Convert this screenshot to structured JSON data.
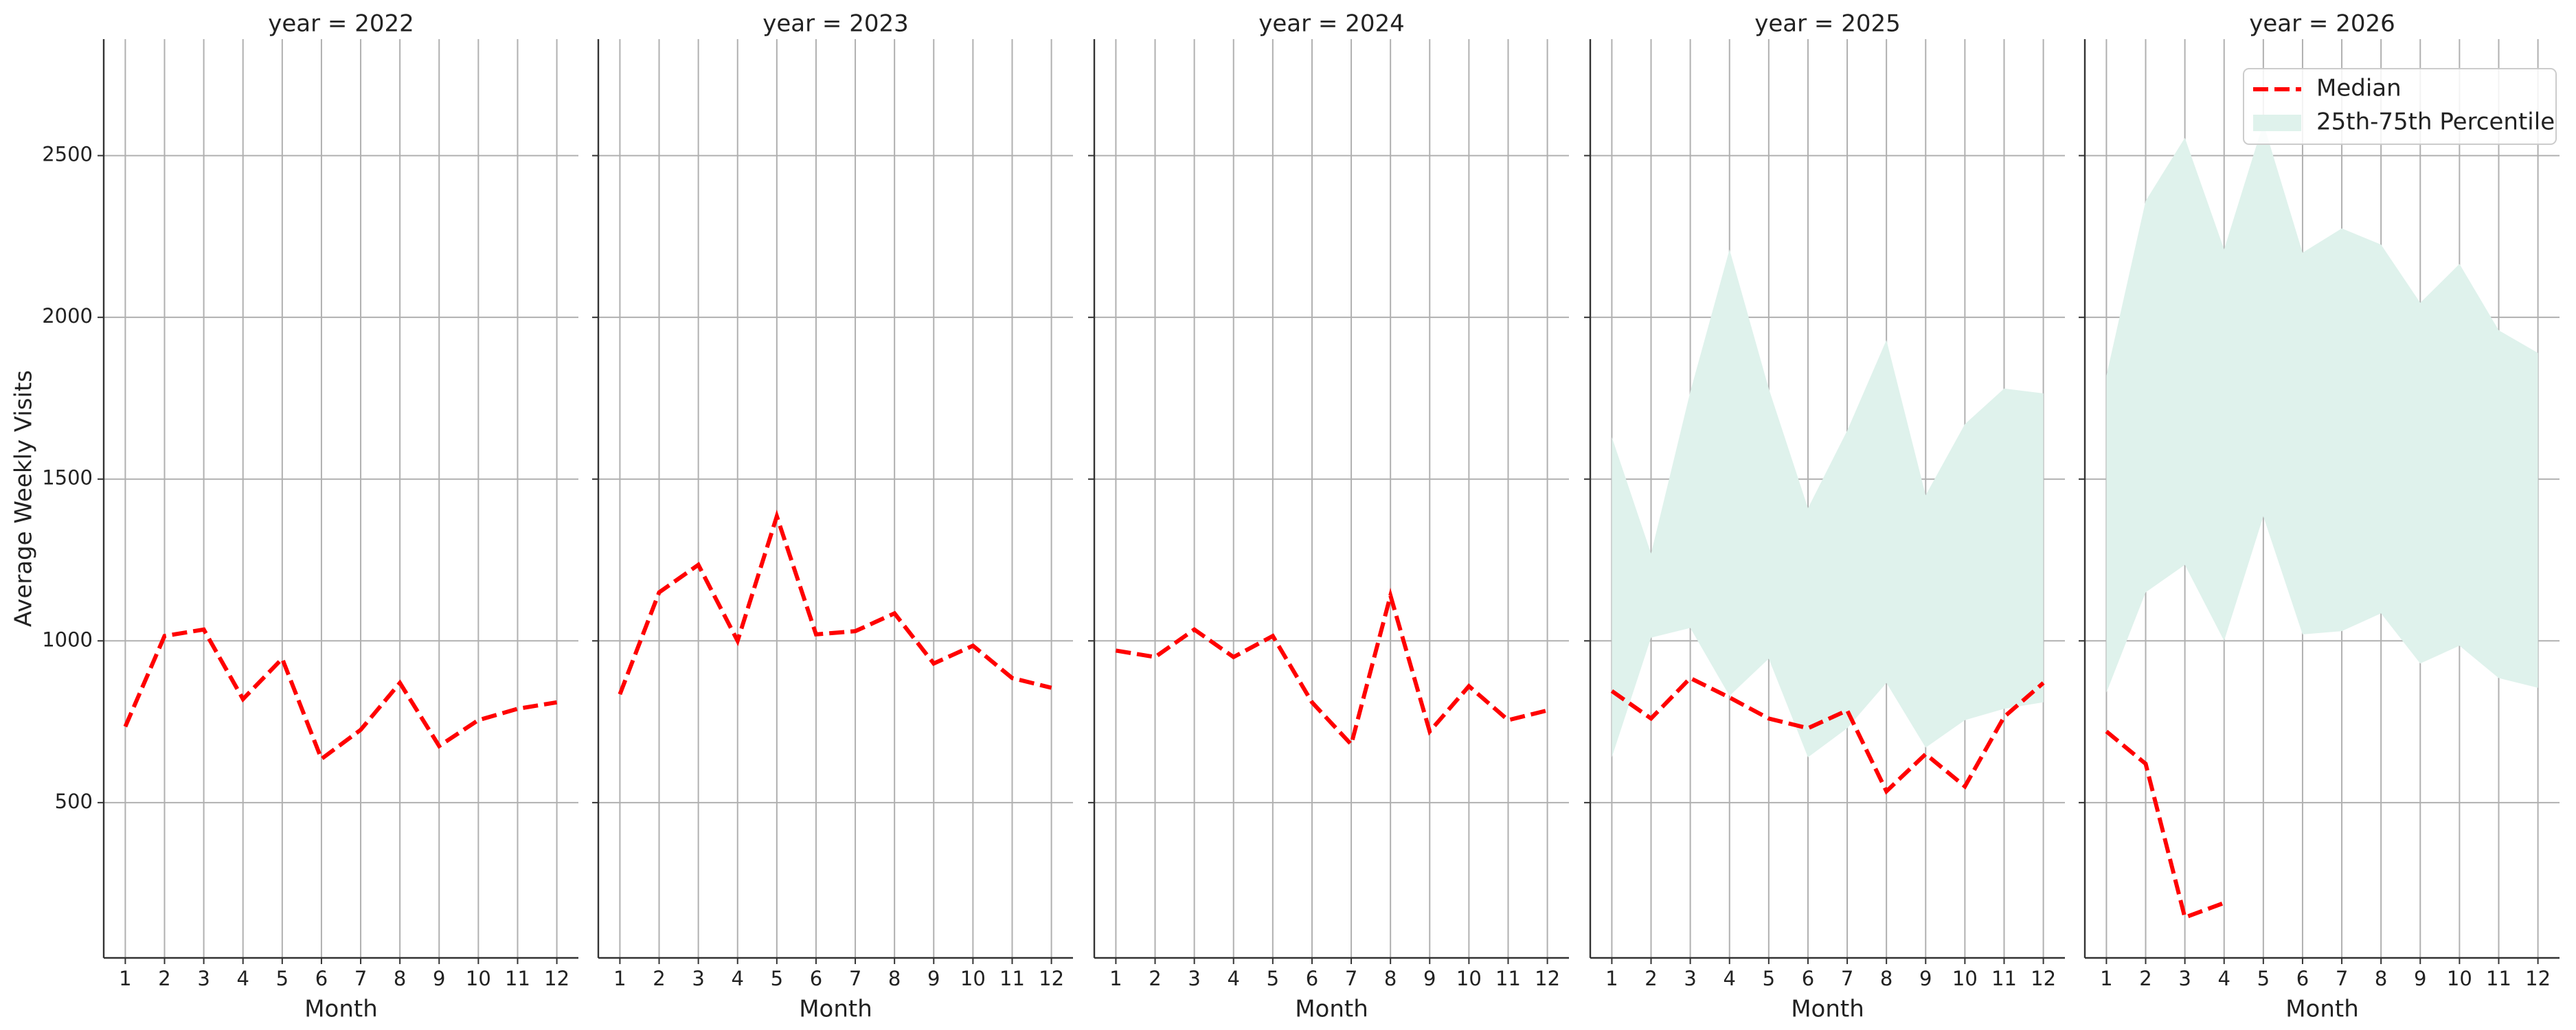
{
  "chart_data": [
    {
      "type": "line",
      "title": "year = 2022",
      "x_label": "Month",
      "y_label": "Average Weekly Visits",
      "x": [
        1,
        2,
        3,
        4,
        5,
        6,
        7,
        8,
        9,
        10,
        11,
        12
      ],
      "xticks": [
        1,
        2,
        3,
        4,
        5,
        6,
        7,
        8,
        9,
        10,
        11,
        12
      ],
      "xlim": [
        0.45,
        12.55
      ],
      "ylim": [
        20,
        2860
      ],
      "yticks": [
        500,
        1000,
        1500,
        2000,
        2500
      ],
      "grid": true,
      "series": [
        {
          "type": "line",
          "color": "#ff0000",
          "dashed": true,
          "values": [
            735,
            1015,
            1035,
            820,
            945,
            635,
            725,
            870,
            675,
            755,
            790,
            810
          ]
        }
      ]
    },
    {
      "type": "line",
      "title": "year = 2023",
      "x_label": "Month",
      "x": [
        1,
        2,
        3,
        4,
        5,
        6,
        7,
        8,
        9,
        10,
        11,
        12
      ],
      "xticks": [
        1,
        2,
        3,
        4,
        5,
        6,
        7,
        8,
        9,
        10,
        11,
        12
      ],
      "xlim": [
        0.45,
        12.55
      ],
      "ylim": [
        20,
        2860
      ],
      "yticks": [
        500,
        1000,
        1500,
        2000,
        2500
      ],
      "grid": true,
      "series": [
        {
          "type": "line",
          "color": "#ff0000",
          "dashed": true,
          "values": [
            835,
            1150,
            1235,
            1000,
            1385,
            1020,
            1030,
            1085,
            930,
            985,
            885,
            855
          ]
        }
      ]
    },
    {
      "type": "line",
      "title": "year = 2024",
      "x_label": "Month",
      "x": [
        1,
        2,
        3,
        4,
        5,
        6,
        7,
        8,
        9,
        10,
        11,
        12
      ],
      "xticks": [
        1,
        2,
        3,
        4,
        5,
        6,
        7,
        8,
        9,
        10,
        11,
        12
      ],
      "xlim": [
        0.45,
        12.55
      ],
      "ylim": [
        20,
        2860
      ],
      "yticks": [
        500,
        1000,
        1500,
        2000,
        2500
      ],
      "grid": true,
      "series": [
        {
          "type": "line",
          "color": "#ff0000",
          "dashed": true,
          "values": [
            970,
            950,
            1035,
            950,
            1015,
            810,
            680,
            1140,
            720,
            860,
            755,
            785
          ]
        }
      ]
    },
    {
      "type": "line",
      "title": "year = 2025",
      "x_label": "Month",
      "x": [
        1,
        2,
        3,
        4,
        5,
        6,
        7,
        8,
        9,
        10,
        11,
        12
      ],
      "xticks": [
        1,
        2,
        3,
        4,
        5,
        6,
        7,
        8,
        9,
        10,
        11,
        12
      ],
      "xlim": [
        0.45,
        12.55
      ],
      "ylim": [
        20,
        2860
      ],
      "yticks": [
        500,
        1000,
        1500,
        2000,
        2500
      ],
      "grid": true,
      "series": [
        {
          "type": "line",
          "color": "#ff0000",
          "dashed": true,
          "values": [
            845,
            760,
            885,
            825,
            760,
            730,
            785,
            535,
            650,
            550,
            765,
            870
          ]
        },
        {
          "type": "band",
          "color": "#dff2ec",
          "lower": [
            640,
            1010,
            1040,
            830,
            945,
            640,
            730,
            870,
            670,
            755,
            790,
            810
          ],
          "upper": [
            1630,
            1270,
            1770,
            2210,
            1780,
            1410,
            1650,
            1930,
            1450,
            1670,
            1780,
            1765
          ]
        }
      ]
    },
    {
      "type": "line",
      "title": "year = 2026",
      "x_label": "Month",
      "x": [
        1,
        2,
        3,
        4,
        5,
        6,
        7,
        8,
        9,
        10,
        11,
        12
      ],
      "xticks": [
        1,
        2,
        3,
        4,
        5,
        6,
        7,
        8,
        9,
        10,
        11,
        12
      ],
      "xlim": [
        0.45,
        12.55
      ],
      "ylim": [
        20,
        2860
      ],
      "yticks": [
        500,
        1000,
        1500,
        2000,
        2500
      ],
      "grid": true,
      "legend": "upper right",
      "series": [
        {
          "type": "line",
          "name": "Median",
          "color": "#ff0000",
          "dashed": true,
          "values": [
            720,
            620,
            145,
            190,
            null,
            null,
            null,
            null,
            null,
            null,
            null,
            null
          ]
        },
        {
          "type": "band",
          "name": "25th-75th Percentile",
          "color": "#dff2ec",
          "lower": [
            840,
            1150,
            1235,
            1000,
            1385,
            1020,
            1030,
            1085,
            930,
            985,
            885,
            855
          ],
          "upper": [
            1820,
            2360,
            2555,
            2210,
            2600,
            2200,
            2275,
            2225,
            2045,
            2165,
            1960,
            1890
          ]
        }
      ]
    }
  ]
}
